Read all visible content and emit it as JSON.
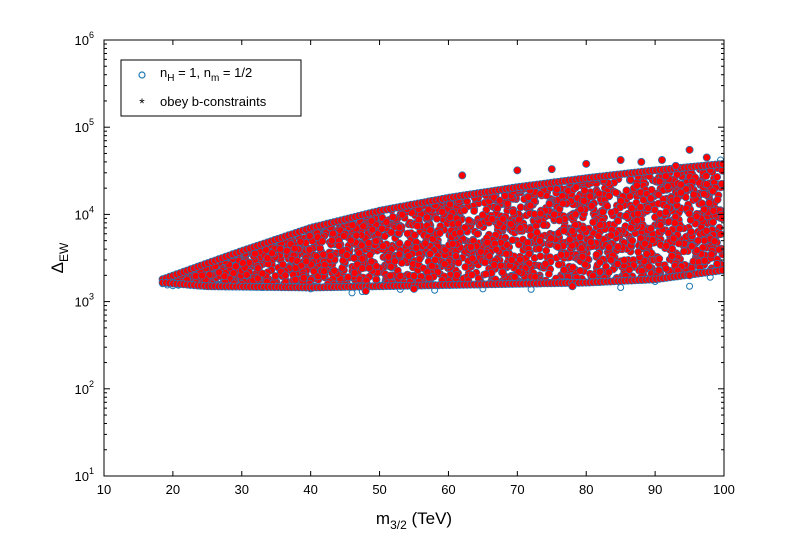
{
  "chart_data": {
    "type": "scatter",
    "x_axis": {
      "label": "m",
      "label_sub": "3/2",
      "label_suffix": " (TeV)",
      "range": [
        10,
        100
      ],
      "ticks": [
        "10",
        "20",
        "30",
        "40",
        "50",
        "60",
        "70",
        "80",
        "90",
        "100"
      ]
    },
    "y_axis": {
      "label": "Δ",
      "label_sub": "EW",
      "scale": "log",
      "range": [
        10,
        1000000
      ],
      "ticks": [
        {
          "base": "10",
          "exp": "1"
        },
        {
          "base": "10",
          "exp": "2"
        },
        {
          "base": "10",
          "exp": "3"
        },
        {
          "base": "10",
          "exp": "4"
        },
        {
          "base": "10",
          "exp": "5"
        },
        {
          "base": "10",
          "exp": "6"
        }
      ]
    },
    "grid": false,
    "legend_position": "top-left",
    "legend": [
      {
        "marker": "open-circle",
        "color": "#1f77b4",
        "text_parts": [
          "n",
          "H",
          " = 1, n",
          "m",
          " = 1/2"
        ]
      },
      {
        "marker": "asterisk",
        "color": "#ff0000",
        "text": "obey b-constraints"
      }
    ],
    "series": [
      {
        "marker": "open-circle",
        "color": "#1f77b4",
        "points": [
          [
            18.5,
            1600
          ],
          [
            19.2,
            1550
          ],
          [
            20.0,
            1520
          ],
          [
            20.8,
            1540
          ],
          [
            21.5,
            1580
          ],
          [
            46.0,
            1260
          ],
          [
            47.5,
            1300
          ],
          [
            33.0,
            1450
          ],
          [
            26.0,
            1480
          ],
          [
            58.0,
            1350
          ],
          [
            65.0,
            1400
          ],
          [
            72.0,
            1380
          ],
          [
            85.0,
            1450
          ],
          [
            95.0,
            1500
          ],
          [
            99.5,
            2600
          ],
          [
            99.5,
            42000
          ],
          [
            98.0,
            1900
          ],
          [
            90.0,
            1700
          ],
          [
            40.0,
            1400
          ],
          [
            53.0,
            1380
          ]
        ]
      },
      {
        "marker": "asterisk-filled",
        "color": "#ff0000",
        "outline": "#1f77b4",
        "band": {
          "x_start": 18.5,
          "x_end": 99.8,
          "start_lo": 1650,
          "start_hi": 1800,
          "upper": [
            [
              18.5,
              1800
            ],
            [
              30,
              3800
            ],
            [
              40,
              7000
            ],
            [
              50,
              11000
            ],
            [
              60,
              15500
            ],
            [
              70,
              20500
            ],
            [
              80,
              26000
            ],
            [
              90,
              32000
            ],
            [
              100,
              38000
            ]
          ],
          "lower": [
            [
              18.5,
              1650
            ],
            [
              25,
              1500
            ],
            [
              40,
              1450
            ],
            [
              50,
              1500
            ],
            [
              60,
              1550
            ],
            [
              70,
              1600
            ],
            [
              80,
              1650
            ],
            [
              90,
              1800
            ],
            [
              100,
              2300
            ]
          ]
        },
        "outliers": [
          [
            62.0,
            28000
          ],
          [
            70.0,
            32000
          ],
          [
            75.0,
            33000
          ],
          [
            80.0,
            38000
          ],
          [
            85.0,
            42000
          ],
          [
            88.0,
            40000
          ],
          [
            91.0,
            42000
          ],
          [
            95.0,
            55000
          ],
          [
            97.5,
            45000
          ],
          [
            93.0,
            36000
          ],
          [
            55.0,
            1400
          ],
          [
            48.0,
            1320
          ],
          [
            78.0,
            1500
          ],
          [
            95.0,
            2000
          ],
          [
            99.0,
            2700
          ]
        ]
      }
    ]
  }
}
